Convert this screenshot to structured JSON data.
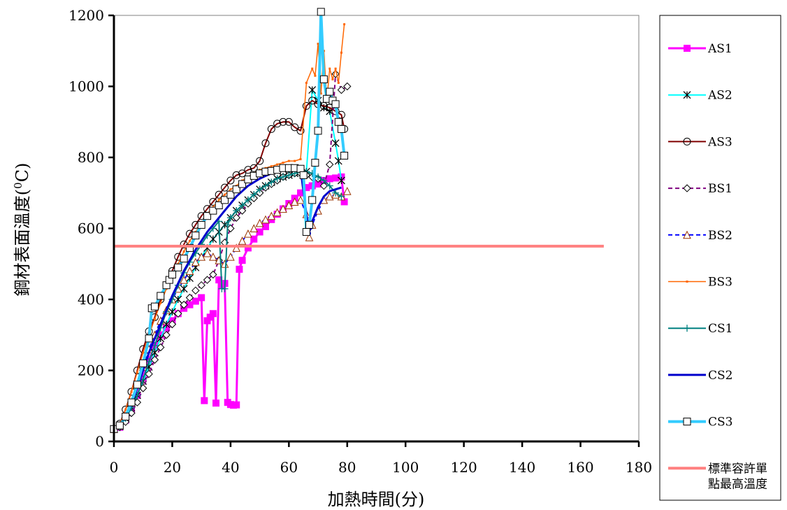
{
  "chart_data": {
    "type": "line",
    "title": "",
    "xlabel": "加熱時間(分)",
    "ylabel_main": "鋼材表面溫度(",
    "ylabel_sup": "0",
    "ylabel_unit": "C)",
    "xlim": [
      0,
      180
    ],
    "ylim": [
      0,
      1200
    ],
    "xticks": [
      "0",
      "20",
      "40",
      "60",
      "80",
      "100",
      "120",
      "140",
      "160",
      "180"
    ],
    "yticks": [
      "0",
      "200",
      "400",
      "600",
      "800",
      "1000",
      "1200"
    ],
    "grid": false,
    "legend_position": "right",
    "series": [
      {
        "name": "AS1",
        "color": "#FF00FF",
        "marker": "square-filled",
        "dash": "solid",
        "width": 3,
        "x": [
          0,
          2,
          4,
          6,
          8,
          10,
          12,
          14,
          16,
          18,
          20,
          22,
          24,
          26,
          28,
          30,
          31,
          32,
          33,
          34,
          35,
          36,
          37,
          38,
          39,
          40,
          41,
          42,
          43,
          44,
          46,
          48,
          50,
          52,
          54,
          56,
          58,
          60,
          62,
          64,
          66,
          68,
          70,
          72,
          74,
          76,
          78,
          79
        ],
        "y": [
          35,
          40,
          60,
          90,
          130,
          180,
          230,
          270,
          300,
          320,
          340,
          360,
          375,
          385,
          395,
          405,
          115,
          340,
          350,
          360,
          108,
          455,
          440,
          445,
          110,
          104,
          102,
          103,
          485,
          510,
          545,
          570,
          590,
          605,
          625,
          640,
          655,
          670,
          685,
          700,
          715,
          720,
          725,
          735,
          740,
          742,
          745,
          675
        ]
      },
      {
        "name": "AS2",
        "color": "#00FFFF",
        "marker": "asterisk",
        "markerColor": "#000000",
        "dash": "solid",
        "width": 2,
        "x": [
          0,
          2,
          4,
          6,
          8,
          10,
          12,
          14,
          16,
          18,
          20,
          22,
          24,
          26,
          28,
          30,
          32,
          34,
          36,
          38,
          40,
          42,
          44,
          46,
          48,
          50,
          52,
          54,
          56,
          58,
          60,
          62,
          64,
          66,
          68,
          70,
          72,
          74,
          76,
          77,
          78
        ],
        "y": [
          35,
          42,
          65,
          95,
          130,
          170,
          210,
          250,
          290,
          330,
          365,
          400,
          430,
          460,
          490,
          520,
          545,
          570,
          590,
          610,
          630,
          650,
          665,
          680,
          695,
          710,
          720,
          730,
          740,
          745,
          750,
          755,
          760,
          760,
          990,
          960,
          940,
          930,
          840,
          790,
          735
        ]
      },
      {
        "name": "AS3",
        "color": "#800000",
        "marker": "circle-open",
        "dash": "solid",
        "width": 2,
        "x": [
          0,
          2,
          4,
          6,
          8,
          10,
          12,
          14,
          16,
          18,
          20,
          22,
          24,
          26,
          28,
          30,
          32,
          34,
          36,
          38,
          40,
          42,
          44,
          46,
          48,
          50,
          52,
          54,
          56,
          58,
          60,
          62,
          64,
          66,
          68,
          70,
          72,
          74,
          76,
          78,
          79
        ],
        "y": [
          35,
          50,
          90,
          140,
          200,
          260,
          310,
          350,
          400,
          440,
          480,
          520,
          555,
          585,
          610,
          635,
          655,
          675,
          695,
          715,
          735,
          750,
          755,
          765,
          770,
          790,
          840,
          880,
          895,
          900,
          900,
          885,
          875,
          945,
          960,
          950,
          945,
          940,
          930,
          920,
          880
        ]
      },
      {
        "name": "BS1",
        "color": "#800080",
        "marker": "diamond-open",
        "dash": "6,4",
        "width": 2,
        "x": [
          0,
          2,
          4,
          6,
          8,
          10,
          12,
          14,
          16,
          18,
          20,
          22,
          24,
          26,
          28,
          30,
          32,
          34,
          36,
          38,
          40,
          42,
          44,
          46,
          48,
          50,
          52,
          54,
          56,
          58,
          60,
          62,
          64,
          66,
          68,
          70,
          72,
          74,
          76,
          78,
          80
        ],
        "y": [
          35,
          40,
          55,
          80,
          110,
          150,
          190,
          230,
          265,
          300,
          330,
          360,
          385,
          405,
          425,
          440,
          455,
          470,
          510,
          560,
          600,
          630,
          650,
          670,
          685,
          700,
          715,
          725,
          735,
          745,
          750,
          755,
          755,
          750,
          745,
          740,
          720,
          780,
          1035,
          990,
          1000
        ]
      },
      {
        "name": "BS2",
        "color": "#0000FF",
        "marker": "triangle-open",
        "markerColor": "#993300",
        "dash": "6,4",
        "width": 2,
        "x": [
          0,
          2,
          4,
          6,
          8,
          10,
          12,
          14,
          16,
          18,
          20,
          22,
          24,
          26,
          28,
          30,
          32,
          34,
          36,
          38,
          40,
          42,
          44,
          46,
          48,
          50,
          52,
          54,
          56,
          58,
          60,
          62,
          64,
          66,
          67,
          68,
          70,
          72,
          74,
          76,
          78,
          80
        ],
        "y": [
          35,
          45,
          70,
          110,
          160,
          210,
          260,
          300,
          340,
          370,
          400,
          430,
          455,
          480,
          505,
          520,
          530,
          520,
          510,
          500,
          520,
          545,
          565,
          585,
          600,
          615,
          625,
          635,
          645,
          655,
          665,
          675,
          680,
          640,
          575,
          610,
          650,
          680,
          690,
          695,
          690,
          705
        ]
      },
      {
        "name": "BS3",
        "color": "#FF6600",
        "marker": "small-dot",
        "dash": "solid",
        "width": 1.5,
        "x": [
          0,
          2,
          4,
          6,
          8,
          10,
          12,
          14,
          16,
          18,
          20,
          22,
          24,
          26,
          28,
          30,
          32,
          34,
          36,
          38,
          40,
          42,
          44,
          46,
          48,
          50,
          52,
          54,
          56,
          58,
          60,
          62,
          64,
          66,
          68,
          69,
          70,
          71,
          72,
          73,
          74,
          75,
          76,
          77,
          78,
          79
        ],
        "y": [
          35,
          50,
          90,
          140,
          195,
          250,
          300,
          345,
          390,
          430,
          465,
          500,
          535,
          565,
          590,
          615,
          640,
          660,
          680,
          695,
          710,
          720,
          735,
          745,
          755,
          765,
          770,
          775,
          780,
          785,
          790,
          790,
          795,
          1010,
          1050,
          1030,
          1120,
          980,
          1100,
          960,
          1050,
          1020,
          1050,
          1010,
          1095,
          1175
        ]
      },
      {
        "name": "CS1",
        "color": "#008080",
        "marker": "plus",
        "dash": "solid",
        "width": 2,
        "x": [
          0,
          2,
          4,
          6,
          8,
          10,
          12,
          14,
          16,
          18,
          20,
          22,
          24,
          26,
          28,
          30,
          32,
          34,
          36,
          37,
          38,
          39,
          40,
          42,
          44,
          46,
          48,
          50,
          52,
          54,
          56,
          58,
          60,
          62,
          64,
          66,
          68,
          70,
          72,
          74,
          76,
          78
        ],
        "y": [
          35,
          42,
          65,
          95,
          130,
          175,
          225,
          270,
          320,
          365,
          400,
          440,
          475,
          505,
          530,
          555,
          580,
          600,
          620,
          430,
          430,
          610,
          630,
          650,
          665,
          680,
          695,
          710,
          720,
          730,
          740,
          745,
          750,
          755,
          760,
          760,
          755,
          745,
          735,
          720,
          700,
          690
        ]
      },
      {
        "name": "CS2",
        "color": "#0000CC",
        "marker": "none",
        "dash": "solid",
        "width": 3,
        "x": [
          0,
          2,
          4,
          6,
          8,
          10,
          12,
          14,
          16,
          18,
          20,
          22,
          24,
          26,
          28,
          30,
          32,
          34,
          36,
          38,
          40,
          42,
          44,
          46,
          48,
          50,
          52,
          54,
          56,
          58,
          60,
          62,
          64,
          66,
          67,
          68,
          70,
          72,
          74,
          76,
          78
        ],
        "y": [
          35,
          45,
          70,
          105,
          150,
          200,
          250,
          290,
          330,
          370,
          410,
          445,
          480,
          510,
          540,
          565,
          590,
          610,
          630,
          650,
          670,
          690,
          705,
          720,
          730,
          740,
          748,
          755,
          760,
          765,
          768,
          770,
          768,
          640,
          590,
          620,
          660,
          690,
          705,
          710,
          715
        ]
      },
      {
        "name": "CS3",
        "color": "#33CCFF",
        "marker": "square-open",
        "dash": "solid",
        "width": 4,
        "x": [
          0,
          2,
          4,
          6,
          8,
          10,
          12,
          13,
          14,
          16,
          18,
          19,
          20,
          22,
          24,
          26,
          28,
          30,
          32,
          34,
          36,
          38,
          40,
          42,
          44,
          46,
          48,
          50,
          52,
          54,
          56,
          58,
          60,
          62,
          64,
          65,
          66,
          67,
          68,
          69,
          70,
          71,
          72,
          73,
          74,
          75,
          76,
          77,
          78,
          79
        ],
        "y": [
          35,
          45,
          70,
          110,
          160,
          220,
          290,
          375,
          380,
          410,
          440,
          455,
          470,
          490,
          515,
          545,
          580,
          610,
          635,
          650,
          665,
          680,
          695,
          710,
          725,
          738,
          748,
          755,
          760,
          762,
          765,
          770,
          770,
          770,
          768,
          750,
          590,
          610,
          680,
          785,
          875,
          1210,
          1020,
          965,
          985,
          960,
          950,
          900,
          880,
          805
        ]
      },
      {
        "name": "標準容許單點最高溫度",
        "legend_lines": [
          "標準容許單",
          "點最高溫度"
        ],
        "color": "#FF8080",
        "marker": "none",
        "dash": "solid",
        "width": 4,
        "x": [
          0,
          168
        ],
        "y": [
          550,
          550
        ]
      }
    ]
  }
}
